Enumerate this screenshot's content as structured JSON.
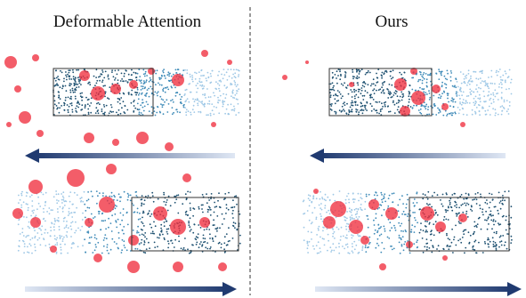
{
  "panels": [
    {
      "title": "Deformable Attention"
    },
    {
      "title": "Ours"
    }
  ]
}
